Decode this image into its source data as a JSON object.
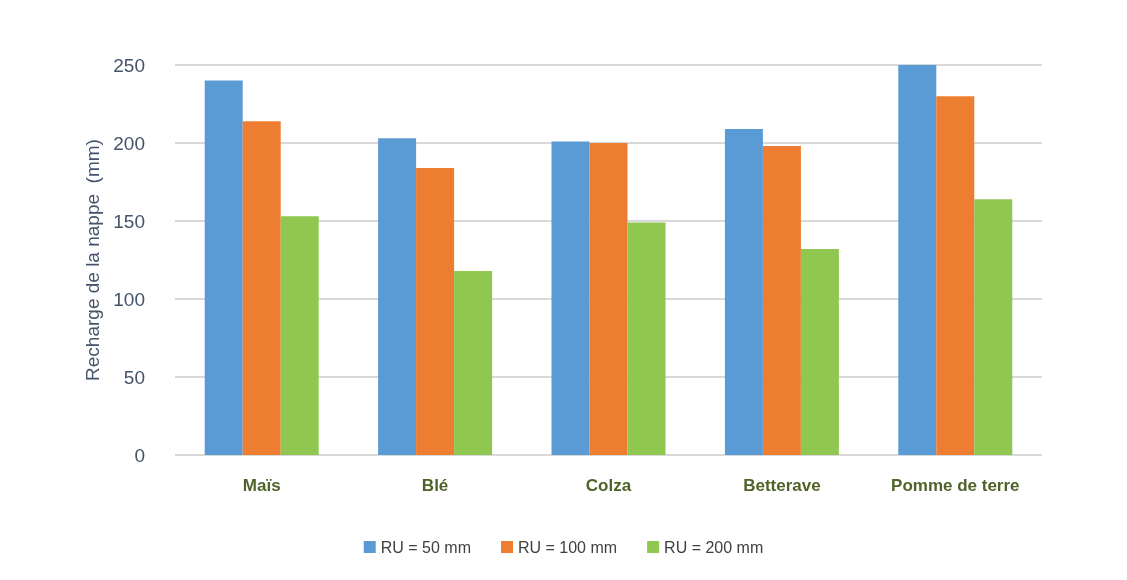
{
  "chart_data": {
    "type": "bar",
    "ylabel": "Recharge de la nappe  (mm)",
    "categories": [
      "Maïs",
      "Blé",
      "Colza",
      "Betterave",
      "Pomme de terre"
    ],
    "series": [
      {
        "name": "RU = 50 mm",
        "color": "#5b9bd5",
        "values": [
          240,
          203,
          201,
          209,
          250
        ]
      },
      {
        "name": "RU = 100 mm",
        "color": "#ed7d31",
        "values": [
          214,
          184,
          200,
          198,
          230
        ]
      },
      {
        "name": "RU = 200 mm",
        "color": "#8fc750",
        "values": [
          153,
          118,
          149,
          132,
          164
        ]
      }
    ],
    "ylim": [
      0,
      250
    ],
    "yticks": [
      0,
      50,
      100,
      150,
      200,
      250
    ],
    "grid": "y",
    "legend": "bottom"
  }
}
